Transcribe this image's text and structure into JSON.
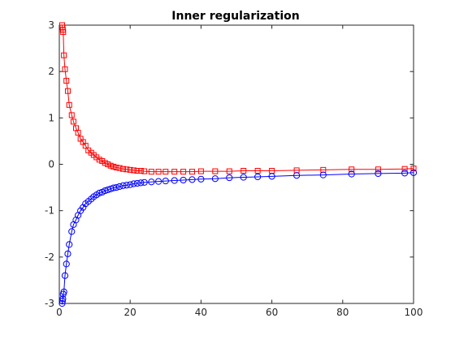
{
  "chart_data": {
    "type": "line",
    "title": "Inner regularization",
    "xlabel": "",
    "ylabel": "",
    "xlim": [
      0,
      100
    ],
    "ylim": [
      -3,
      3
    ],
    "grid": false,
    "legend": "none",
    "xticks": [
      0,
      20,
      40,
      60,
      80,
      100
    ],
    "yticks": [
      -3,
      -2,
      -1,
      0,
      1,
      2,
      3
    ],
    "series": [
      {
        "color": "#ff0000",
        "marker": "square",
        "x": [
          0.8,
          0.9,
          1.0,
          1.1,
          1.3,
          1.6,
          2.0,
          2.4,
          2.8,
          3.5,
          4.0,
          4.7,
          5.3,
          6.0,
          6.7,
          7.4,
          8.2,
          9.0,
          9.7,
          10.5,
          11.3,
          12.1,
          12.9,
          13.7,
          14.5,
          15.3,
          16.1,
          17.0,
          18.0,
          19.0,
          20.0,
          21.0,
          22.0,
          23.0,
          24.0,
          26.0,
          28.0,
          30.0,
          32.5,
          35.0,
          37.5,
          40.0,
          44.0,
          48.0,
          52.0,
          56.0,
          60.0,
          67.0,
          74.5,
          82.5,
          90.0,
          97.5,
          100.0
        ],
        "y": [
          3.0,
          2.95,
          2.9,
          2.85,
          2.35,
          2.05,
          1.8,
          1.58,
          1.28,
          1.06,
          0.92,
          0.78,
          0.68,
          0.55,
          0.48,
          0.4,
          0.3,
          0.25,
          0.2,
          0.15,
          0.1,
          0.07,
          0.03,
          0.0,
          -0.03,
          -0.05,
          -0.07,
          -0.08,
          -0.1,
          -0.11,
          -0.12,
          -0.13,
          -0.14,
          -0.14,
          -0.15,
          -0.16,
          -0.16,
          -0.16,
          -0.16,
          -0.16,
          -0.16,
          -0.15,
          -0.15,
          -0.15,
          -0.14,
          -0.14,
          -0.14,
          -0.13,
          -0.12,
          -0.11,
          -0.11,
          -0.1,
          -0.09
        ]
      },
      {
        "color": "#0000ff",
        "marker": "circle",
        "x": [
          0.8,
          0.9,
          1.0,
          1.1,
          1.3,
          1.6,
          2.0,
          2.4,
          2.8,
          3.5,
          4.0,
          4.7,
          5.3,
          6.0,
          6.7,
          7.4,
          8.2,
          9.0,
          9.7,
          10.5,
          11.3,
          12.1,
          12.9,
          13.7,
          14.5,
          15.3,
          16.1,
          17.0,
          18.0,
          19.0,
          20.0,
          21.0,
          22.0,
          23.0,
          24.0,
          26.0,
          28.0,
          30.0,
          32.5,
          35.0,
          37.5,
          40.0,
          44.0,
          48.0,
          52.0,
          56.0,
          60.0,
          67.0,
          74.5,
          82.5,
          90.0,
          97.5,
          100.0
        ],
        "y": [
          -3.0,
          -2.95,
          -2.9,
          -2.8,
          -2.75,
          -2.4,
          -2.15,
          -1.93,
          -1.73,
          -1.45,
          -1.3,
          -1.2,
          -1.1,
          -1.0,
          -0.93,
          -0.85,
          -0.8,
          -0.75,
          -0.7,
          -0.66,
          -0.62,
          -0.6,
          -0.57,
          -0.55,
          -0.53,
          -0.51,
          -0.5,
          -0.48,
          -0.46,
          -0.45,
          -0.44,
          -0.42,
          -0.41,
          -0.4,
          -0.39,
          -0.38,
          -0.37,
          -0.36,
          -0.35,
          -0.34,
          -0.33,
          -0.32,
          -0.31,
          -0.29,
          -0.28,
          -0.27,
          -0.26,
          -0.24,
          -0.23,
          -0.21,
          -0.2,
          -0.19,
          -0.18
        ]
      }
    ]
  }
}
